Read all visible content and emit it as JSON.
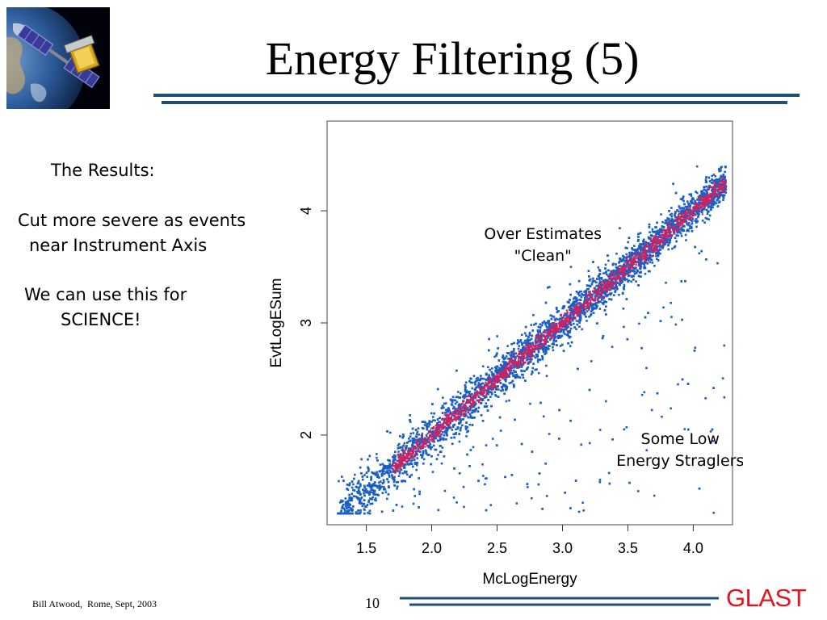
{
  "slide": {
    "title": "Energy Filtering (5)",
    "results": {
      "heading": "The Results:",
      "line1": "Cut more severe as events",
      "line2": "near Instrument Axis",
      "line3": "We can use this for",
      "line4": "SCIENCE!"
    },
    "footer": {
      "author": "Bill Atwood,  Rome, Sept, 2003",
      "page": "10",
      "brand": "GLAST"
    },
    "logo": {
      "icon": "satellite-over-earth-icon"
    }
  },
  "colors": {
    "points_blue": "#1a5fc4",
    "points_core": "#d81e5b",
    "rule_blue": "#1f4e79",
    "brand_red": "#e4141e"
  },
  "chart_data": {
    "type": "scatter",
    "xlabel": "McLogEnergy",
    "ylabel": "EvtLogESum",
    "xlim": [
      1.2,
      4.3
    ],
    "ylim": [
      1.2,
      4.8
    ],
    "xticks": [
      "1.5",
      "2.0",
      "2.5",
      "3.0",
      "3.5",
      "4.0"
    ],
    "xtick_values": [
      1.5,
      2.0,
      2.5,
      3.0,
      3.5,
      4.0
    ],
    "yticks": [
      "2",
      "3",
      "4"
    ],
    "ytick_values": [
      2,
      3,
      4
    ],
    "grid": false,
    "point_count_shown": 5000,
    "relation": "EvtLogESum ≈ McLogEnergy, dense diagonal band from about 1.3 to 4.25",
    "annotations": [
      {
        "text_line1": "Over Estimates",
        "text_line2": "\"Clean\"",
        "x": 2.85,
        "y": 3.75
      },
      {
        "text_line1": "Some Low",
        "text_line2": "Energy Straglers",
        "x": 3.9,
        "y": 1.92
      }
    ]
  }
}
